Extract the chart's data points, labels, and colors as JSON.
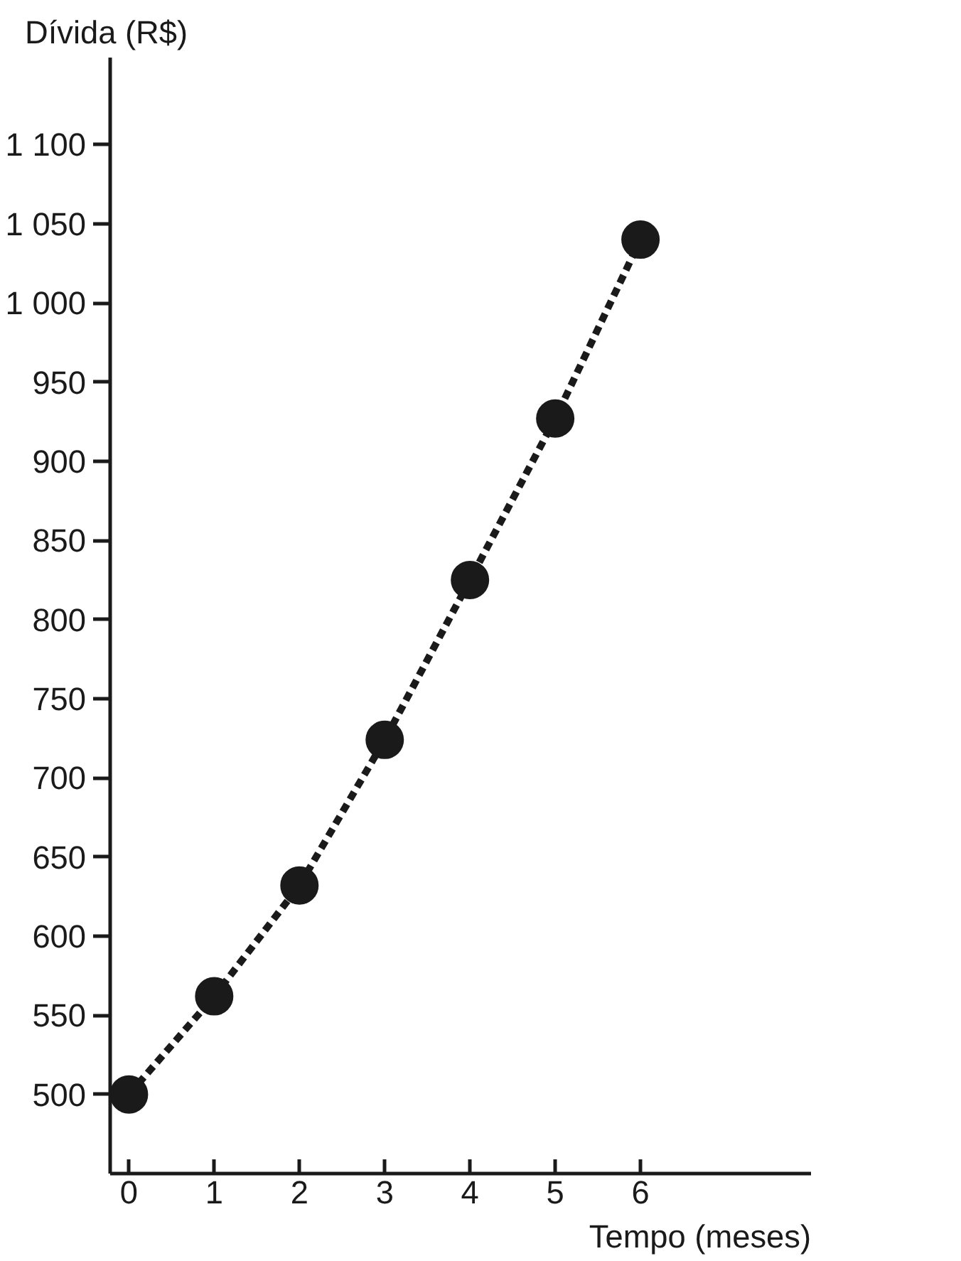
{
  "chart_data": {
    "type": "line",
    "xlabel": "Tempo (meses)",
    "ylabel": "Dívida (R$)",
    "x": [
      0,
      1,
      2,
      3,
      4,
      5,
      6
    ],
    "series": [
      {
        "color": "#1a1a1a",
        "values": [
          500,
          562,
          632,
          724,
          825,
          927,
          1040
        ]
      }
    ],
    "xlim": [
      -0.22,
      8
    ],
    "ylim": [
      450,
      1155
    ],
    "xticks": [
      0,
      1,
      2,
      3,
      4,
      5,
      6
    ],
    "yticks": [
      500,
      550,
      600,
      650,
      700,
      750,
      800,
      850,
      900,
      950,
      {
        "value": 1000,
        "label": "1 000"
      },
      {
        "value": 1050,
        "label": "1 050"
      },
      {
        "value": 1100,
        "label": "1 100"
      }
    ],
    "grid": false,
    "marker": "circle",
    "line_style": "dashed"
  }
}
